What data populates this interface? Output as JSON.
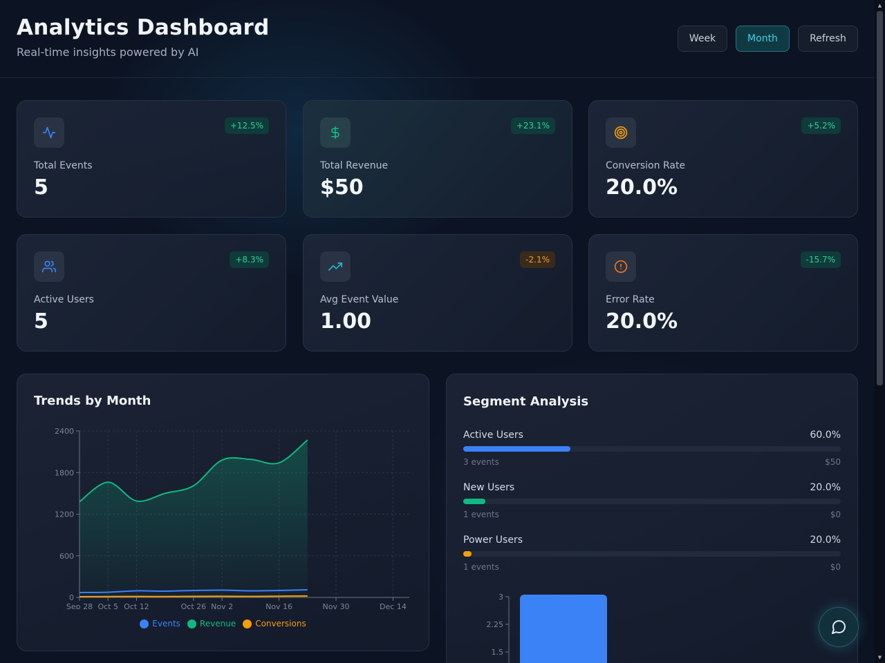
{
  "header": {
    "title": "Analytics Dashboard",
    "subtitle": "Real-time insights powered by AI",
    "buttons": {
      "week": "Week",
      "month": "Month",
      "refresh": "Refresh"
    },
    "active_period": "Month"
  },
  "metrics": [
    {
      "label": "Total Events",
      "value": "5",
      "change": "+12.5%",
      "trend": "up",
      "icon": "activity-icon",
      "icon_color": "#3b82f6"
    },
    {
      "label": "Total Revenue",
      "value": "$50",
      "change": "+23.1%",
      "trend": "up",
      "icon": "dollar-icon",
      "icon_color": "#10b981"
    },
    {
      "label": "Conversion Rate",
      "value": "20.0%",
      "change": "+5.2%",
      "trend": "up",
      "icon": "target-icon",
      "icon_color": "#f59e0b"
    },
    {
      "label": "Active Users",
      "value": "5",
      "change": "+8.3%",
      "trend": "up",
      "icon": "users-icon",
      "icon_color": "#3b82f6"
    },
    {
      "label": "Avg Event Value",
      "value": "1.00",
      "change": "-2.1%",
      "trend": "down",
      "icon": "trending-up-icon",
      "icon_color": "#22b8cf"
    },
    {
      "label": "Error Rate",
      "value": "20.0%",
      "change": "-15.7%",
      "trend": "up",
      "icon": "alert-circle-icon",
      "icon_color": "#f97316"
    }
  ],
  "trends": {
    "title": "Trends by Month"
  },
  "chart_data": {
    "type": "area",
    "title": "Trends by Month",
    "xlabel": "",
    "ylabel": "",
    "x_ticks": [
      "Sep 28",
      "Oct 5",
      "Oct 12",
      "Oct 26",
      "Nov 2",
      "Nov 16",
      "Nov 30",
      "Dec 14"
    ],
    "x_tick_dates": [
      "2025-09-28",
      "2025-10-05",
      "2025-10-12",
      "2025-10-26",
      "2025-11-02",
      "2025-11-16",
      "2025-11-30",
      "2025-12-14"
    ],
    "x_domain": [
      "2025-09-28",
      "2025-12-18"
    ],
    "ylim": [
      0,
      2400
    ],
    "y_ticks": [
      0,
      600,
      1200,
      1800,
      2400
    ],
    "grid": true,
    "legend_position": "bottom",
    "x": [
      "2025-09-28",
      "2025-10-05",
      "2025-10-12",
      "2025-10-19",
      "2025-10-26",
      "2025-11-02",
      "2025-11-09",
      "2025-11-16",
      "2025-11-23"
    ],
    "series": [
      {
        "name": "Events",
        "color": "#3b82f6",
        "values": [
          70,
          75,
          95,
          90,
          100,
          105,
          95,
          100,
          110
        ]
      },
      {
        "name": "Revenue",
        "color": "#10b981",
        "values": [
          1380,
          1660,
          1390,
          1500,
          1610,
          1980,
          1990,
          1940,
          2270
        ]
      },
      {
        "name": "Conversions",
        "color": "#f59e0b",
        "values": [
          10,
          12,
          14,
          12,
          15,
          16,
          14,
          17,
          20
        ]
      }
    ]
  },
  "segments": {
    "title": "Segment Analysis",
    "items": [
      {
        "name": "Active Users",
        "percent": "60.0%",
        "fraction": 0.283,
        "events": "3 events",
        "revenue": "$50",
        "color": "#3b82f6"
      },
      {
        "name": "New Users",
        "percent": "20.0%",
        "fraction": 0.058,
        "events": "1 events",
        "revenue": "$0",
        "color": "#10b981"
      },
      {
        "name": "Power Users",
        "percent": "20.0%",
        "fraction": 0.022,
        "events": "1 events",
        "revenue": "$0",
        "color": "#f59e0b"
      }
    ]
  },
  "segment_chart": {
    "type": "bar",
    "y_ticks": [
      "3",
      "2.25",
      "1.5"
    ],
    "values": [
      3
    ],
    "color": "#3b82f6"
  }
}
